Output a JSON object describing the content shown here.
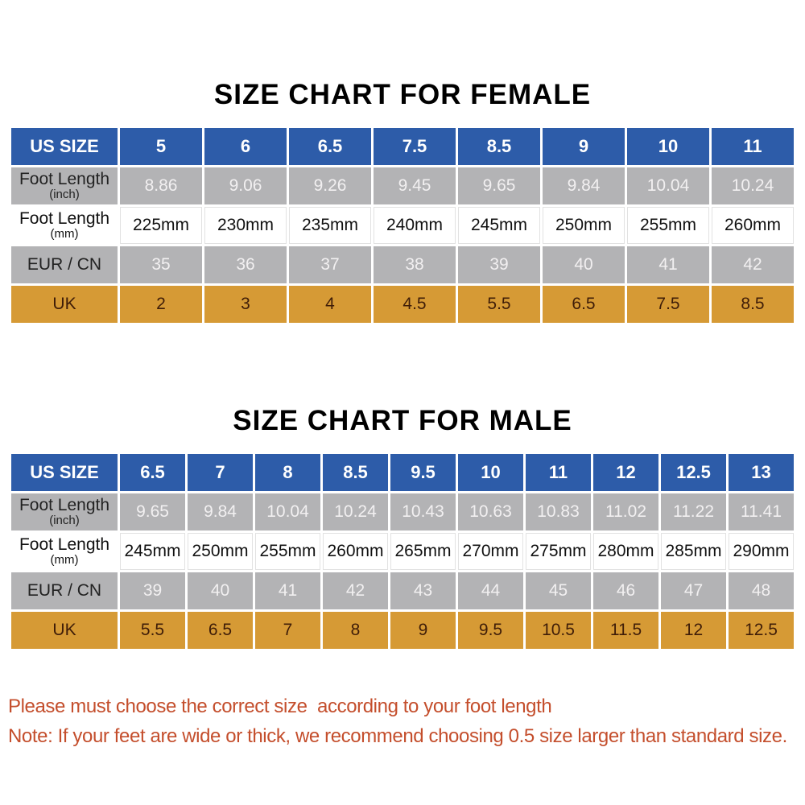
{
  "colors": {
    "header_blue": "#2d5ca9",
    "row_gray": "#b3b3b5",
    "row_orange": "#d69a35",
    "uk_text": "#3f1d08",
    "note_red": "#c44e2c"
  },
  "chart_data": [
    {
      "type": "table",
      "title": "SIZE CHART FOR FEMALE",
      "header_row": [
        "US SIZE",
        "5",
        "6",
        "6.5",
        "7.5",
        "8.5",
        "9",
        "10",
        "11"
      ],
      "rows": [
        {
          "label": "Foot Length",
          "unit": "(inch)",
          "values": [
            "8.86",
            "9.06",
            "9.26",
            "9.45",
            "9.65",
            "9.84",
            "10.04",
            "10.24"
          ]
        },
        {
          "label": "Foot Length",
          "unit": "(mm)",
          "values": [
            "225mm",
            "230mm",
            "235mm",
            "240mm",
            "245mm",
            "250mm",
            "255mm",
            "260mm"
          ]
        },
        {
          "label": "EUR / CN",
          "unit": "",
          "values": [
            "35",
            "36",
            "37",
            "38",
            "39",
            "40",
            "41",
            "42"
          ]
        },
        {
          "label": "UK",
          "unit": "",
          "values": [
            "2",
            "3",
            "4",
            "4.5",
            "5.5",
            "6.5",
            "7.5",
            "8.5"
          ]
        }
      ]
    },
    {
      "type": "table",
      "title": "SIZE CHART FOR MALE",
      "header_row": [
        "US SIZE",
        "6.5",
        "7",
        "8",
        "8.5",
        "9.5",
        "10",
        "11",
        "12",
        "12.5",
        "13"
      ],
      "rows": [
        {
          "label": "Foot Length",
          "unit": "(inch)",
          "values": [
            "9.65",
            "9.84",
            "10.04",
            "10.24",
            "10.43",
            "10.63",
            "10.83",
            "11.02",
            "11.22",
            "11.41"
          ]
        },
        {
          "label": "Foot Length",
          "unit": "(mm)",
          "values": [
            "245mm",
            "250mm",
            "255mm",
            "260mm",
            "265mm",
            "270mm",
            "275mm",
            "280mm",
            "285mm",
            "290mm"
          ]
        },
        {
          "label": "EUR / CN",
          "unit": "",
          "values": [
            "39",
            "40",
            "41",
            "42",
            "43",
            "44",
            "45",
            "46",
            "47",
            "48"
          ]
        },
        {
          "label": "UK",
          "unit": "",
          "values": [
            "5.5",
            "6.5",
            "7",
            "8",
            "9",
            "9.5",
            "10.5",
            "11.5",
            "12",
            "12.5"
          ]
        }
      ]
    }
  ],
  "notes": {
    "line1": "Please must choose the correct size  according to your foot length",
    "line2": "Note: If your feet are wide or thick, we recommend choosing 0.5 size larger than standard size."
  }
}
